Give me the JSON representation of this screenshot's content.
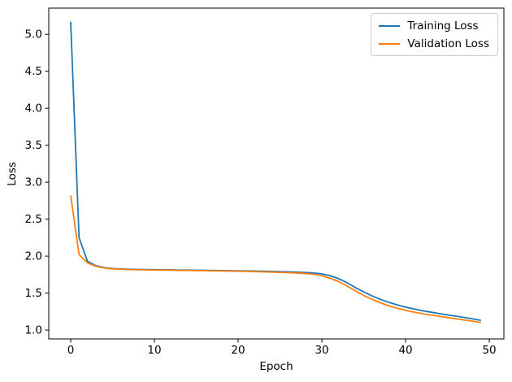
{
  "chart_data": {
    "type": "line",
    "title": "",
    "xlabel": "Epoch",
    "ylabel": "Loss",
    "grid": false,
    "legend_position": "upper right",
    "axis_color": "#000000",
    "background_color": "#ffffff",
    "xlim": [
      -2.62,
      51.74
    ],
    "ylim": [
      0.88,
      5.354
    ],
    "xticks": [
      0,
      10,
      20,
      30,
      40,
      50
    ],
    "xtick_labels": [
      "0",
      "10",
      "20",
      "30",
      "40",
      "50"
    ],
    "yticks": [
      1.0,
      1.5,
      2.0,
      2.5,
      3.0,
      3.5,
      4.0,
      4.5,
      5.0
    ],
    "ytick_labels": [
      "1.0",
      "1.5",
      "2.0",
      "2.5",
      "3.0",
      "3.5",
      "4.0",
      "4.5",
      "5.0"
    ],
    "x": [
      0,
      1,
      2,
      3,
      4,
      5,
      6,
      7,
      8,
      9,
      10,
      11,
      12,
      13,
      14,
      15,
      16,
      17,
      18,
      19,
      20,
      21,
      22,
      23,
      24,
      25,
      26,
      27,
      28,
      29,
      30,
      31,
      32,
      33,
      34,
      35,
      36,
      37,
      38,
      39,
      40,
      41,
      42,
      43,
      44,
      45,
      46,
      47,
      48,
      49
    ],
    "series": [
      {
        "name": "Training Loss",
        "color": "#1f77b4",
        "values": [
          5.17,
          2.25,
          1.93,
          1.87,
          1.845,
          1.832,
          1.826,
          1.822,
          1.82,
          1.818,
          1.817,
          1.815,
          1.814,
          1.812,
          1.811,
          1.809,
          1.808,
          1.806,
          1.805,
          1.803,
          1.801,
          1.799,
          1.797,
          1.795,
          1.792,
          1.79,
          1.787,
          1.783,
          1.779,
          1.772,
          1.76,
          1.735,
          1.695,
          1.64,
          1.575,
          1.515,
          1.462,
          1.415,
          1.375,
          1.34,
          1.31,
          1.285,
          1.262,
          1.242,
          1.224,
          1.205,
          1.188,
          1.17,
          1.152,
          1.132
        ]
      },
      {
        "name": "Validation Loss",
        "color": "#ff7f0e",
        "values": [
          2.82,
          2.02,
          1.91,
          1.862,
          1.84,
          1.828,
          1.822,
          1.818,
          1.816,
          1.814,
          1.812,
          1.81,
          1.809,
          1.807,
          1.806,
          1.804,
          1.803,
          1.801,
          1.799,
          1.797,
          1.795,
          1.793,
          1.79,
          1.787,
          1.784,
          1.78,
          1.776,
          1.771,
          1.764,
          1.755,
          1.735,
          1.7,
          1.655,
          1.595,
          1.53,
          1.468,
          1.415,
          1.368,
          1.328,
          1.295,
          1.267,
          1.243,
          1.222,
          1.203,
          1.186,
          1.169,
          1.152,
          1.136,
          1.12,
          1.103
        ]
      }
    ]
  }
}
